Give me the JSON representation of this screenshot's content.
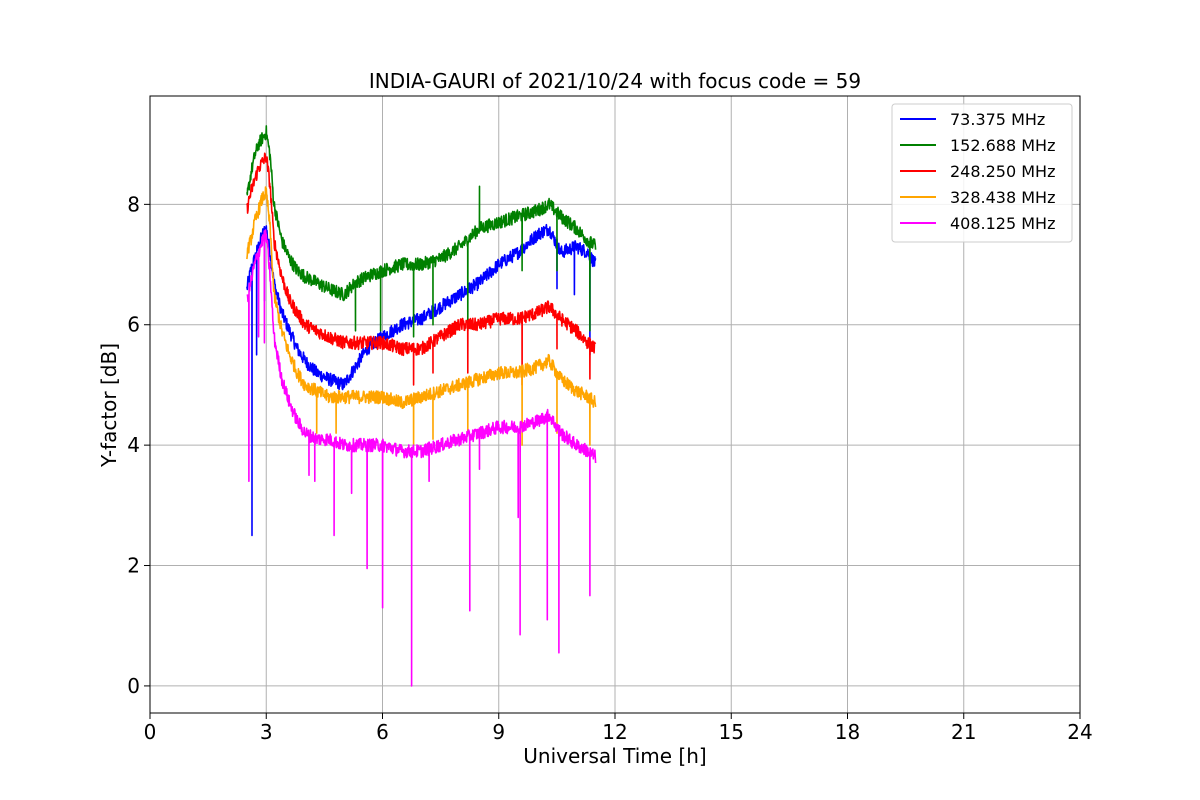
{
  "chart_data": {
    "type": "line",
    "title": "INDIA-GAURI of 2021/10/24 with focus code = 59",
    "xlabel": "Universal Time [h]",
    "ylabel": "Y-factor [dB]",
    "xlim": [
      0,
      24
    ],
    "ylim": [
      -0.45,
      9.8
    ],
    "xticks": [
      0,
      3,
      6,
      9,
      12,
      15,
      18,
      21,
      24
    ],
    "xtick_labels": [
      "0",
      "3",
      "6",
      "9",
      "12",
      "15",
      "18",
      "21",
      "24"
    ],
    "yticks": [
      0,
      2,
      4,
      6,
      8
    ],
    "ytick_labels": [
      "0",
      "2",
      "4",
      "6",
      "8"
    ],
    "grid": true,
    "legend_position": "top-right",
    "series": [
      {
        "name": " 73.375 MHz",
        "color": "#0000ff",
        "x": [
          2.5,
          2.6,
          2.7,
          2.8,
          2.9,
          3.0,
          3.1,
          3.2,
          3.4,
          3.6,
          3.8,
          4.0,
          4.3,
          4.6,
          5.0,
          5.3,
          5.6,
          6.0,
          6.5,
          7.0,
          7.5,
          8.0,
          8.5,
          9.0,
          9.5,
          10.0,
          10.3,
          10.6,
          11.0,
          11.3,
          11.5
        ],
        "y": [
          6.6,
          6.9,
          7.1,
          7.3,
          7.5,
          7.6,
          7.2,
          6.7,
          6.2,
          5.9,
          5.6,
          5.4,
          5.2,
          5.1,
          5.0,
          5.3,
          5.6,
          5.8,
          6.0,
          6.1,
          6.3,
          6.5,
          6.7,
          7.0,
          7.2,
          7.5,
          7.6,
          7.2,
          7.3,
          7.2,
          7.0
        ],
        "dips": [
          [
            2.63,
            2.5
          ],
          [
            2.75,
            5.5
          ],
          [
            2.95,
            6.4
          ],
          [
            10.5,
            6.6
          ],
          [
            10.95,
            6.5
          ],
          [
            11.35,
            5.5
          ]
        ]
      },
      {
        "name": "152.688 MHz",
        "color": "#008000",
        "x": [
          2.5,
          2.6,
          2.7,
          2.8,
          2.9,
          3.0,
          3.1,
          3.2,
          3.4,
          3.6,
          3.8,
          4.0,
          4.3,
          4.6,
          5.0,
          5.3,
          5.6,
          6.0,
          6.5,
          7.0,
          7.5,
          8.0,
          8.5,
          9.0,
          9.5,
          10.0,
          10.3,
          10.6,
          11.0,
          11.3,
          11.5
        ],
        "y": [
          8.1,
          8.5,
          8.8,
          9.0,
          9.1,
          9.2,
          8.8,
          8.0,
          7.4,
          7.1,
          6.9,
          6.8,
          6.7,
          6.6,
          6.5,
          6.7,
          6.8,
          6.9,
          7.0,
          7.0,
          7.1,
          7.3,
          7.6,
          7.7,
          7.8,
          7.9,
          8.0,
          7.8,
          7.6,
          7.4,
          7.3
        ],
        "dips": [
          [
            5.3,
            5.9
          ],
          [
            5.95,
            5.9
          ],
          [
            6.8,
            5.8
          ],
          [
            7.3,
            6.0
          ],
          [
            8.2,
            5.9
          ],
          [
            8.5,
            8.3
          ],
          [
            9.6,
            6.9
          ],
          [
            10.5,
            6.9
          ],
          [
            11.35,
            5.9
          ]
        ]
      },
      {
        "name": "248.250 MHz",
        "color": "#ff0000",
        "x": [
          2.5,
          2.6,
          2.7,
          2.8,
          2.9,
          3.0,
          3.1,
          3.2,
          3.4,
          3.6,
          3.8,
          4.0,
          4.3,
          4.6,
          5.0,
          5.3,
          5.6,
          6.0,
          6.5,
          7.0,
          7.5,
          8.0,
          8.5,
          9.0,
          9.5,
          10.0,
          10.3,
          10.6,
          11.0,
          11.3,
          11.5
        ],
        "y": [
          7.9,
          8.2,
          8.4,
          8.6,
          8.7,
          8.8,
          8.3,
          7.4,
          6.8,
          6.4,
          6.2,
          6.0,
          5.9,
          5.8,
          5.7,
          5.7,
          5.7,
          5.7,
          5.6,
          5.6,
          5.8,
          6.0,
          6.0,
          6.1,
          6.1,
          6.2,
          6.3,
          6.1,
          5.9,
          5.7,
          5.6
        ],
        "dips": [
          [
            6.8,
            5.0
          ],
          [
            7.3,
            5.2
          ],
          [
            8.2,
            5.2
          ],
          [
            9.6,
            5.0
          ],
          [
            10.5,
            5.6
          ],
          [
            11.35,
            5.1
          ]
        ]
      },
      {
        "name": "328.438 MHz",
        "color": "#ffa500",
        "x": [
          2.5,
          2.6,
          2.7,
          2.8,
          2.9,
          3.0,
          3.1,
          3.2,
          3.4,
          3.6,
          3.8,
          4.0,
          4.3,
          4.6,
          5.0,
          5.3,
          5.6,
          6.0,
          6.5,
          7.0,
          7.5,
          8.0,
          8.5,
          9.0,
          9.5,
          10.0,
          10.3,
          10.6,
          11.0,
          11.3,
          11.5
        ],
        "y": [
          7.2,
          7.4,
          7.7,
          7.9,
          8.1,
          8.2,
          7.6,
          6.5,
          5.9,
          5.5,
          5.2,
          5.0,
          4.9,
          4.8,
          4.8,
          4.8,
          4.8,
          4.8,
          4.7,
          4.8,
          4.9,
          5.0,
          5.1,
          5.2,
          5.2,
          5.3,
          5.4,
          5.1,
          4.9,
          4.8,
          4.7
        ],
        "dips": [
          [
            4.3,
            4.2
          ],
          [
            4.8,
            4.2
          ],
          [
            6.8,
            4.0
          ],
          [
            7.3,
            4.1
          ],
          [
            8.2,
            4.2
          ],
          [
            9.6,
            4.0
          ],
          [
            10.5,
            4.2
          ],
          [
            11.35,
            4.0
          ]
        ]
      },
      {
        "name": "408.125 MHz",
        "color": "#ff00ff",
        "x": [
          2.5,
          2.6,
          2.7,
          2.8,
          2.9,
          3.0,
          3.1,
          3.2,
          3.4,
          3.6,
          3.8,
          4.0,
          4.3,
          4.6,
          5.0,
          5.3,
          5.6,
          6.0,
          6.5,
          7.0,
          7.5,
          8.0,
          8.5,
          9.0,
          9.5,
          10.0,
          10.3,
          10.6,
          11.0,
          11.3,
          11.5
        ],
        "y": [
          6.4,
          6.7,
          7.0,
          7.2,
          7.4,
          7.5,
          6.8,
          5.8,
          5.1,
          4.7,
          4.4,
          4.2,
          4.1,
          4.1,
          4.0,
          4.0,
          4.0,
          4.0,
          3.9,
          3.9,
          4.0,
          4.1,
          4.2,
          4.3,
          4.3,
          4.4,
          4.5,
          4.2,
          4.0,
          3.9,
          3.8
        ],
        "dips": [
          [
            2.55,
            3.4
          ],
          [
            2.8,
            5.8
          ],
          [
            2.95,
            5.7
          ],
          [
            4.1,
            3.5
          ],
          [
            4.25,
            3.4
          ],
          [
            4.75,
            2.5
          ],
          [
            5.2,
            3.2
          ],
          [
            5.6,
            1.95
          ],
          [
            6.0,
            1.3
          ],
          [
            6.75,
            0.0
          ],
          [
            7.2,
            3.4
          ],
          [
            8.25,
            1.25
          ],
          [
            8.5,
            3.6
          ],
          [
            9.5,
            2.8
          ],
          [
            9.55,
            0.85
          ],
          [
            10.25,
            1.1
          ],
          [
            10.55,
            0.55
          ],
          [
            11.35,
            1.5
          ]
        ]
      }
    ]
  }
}
